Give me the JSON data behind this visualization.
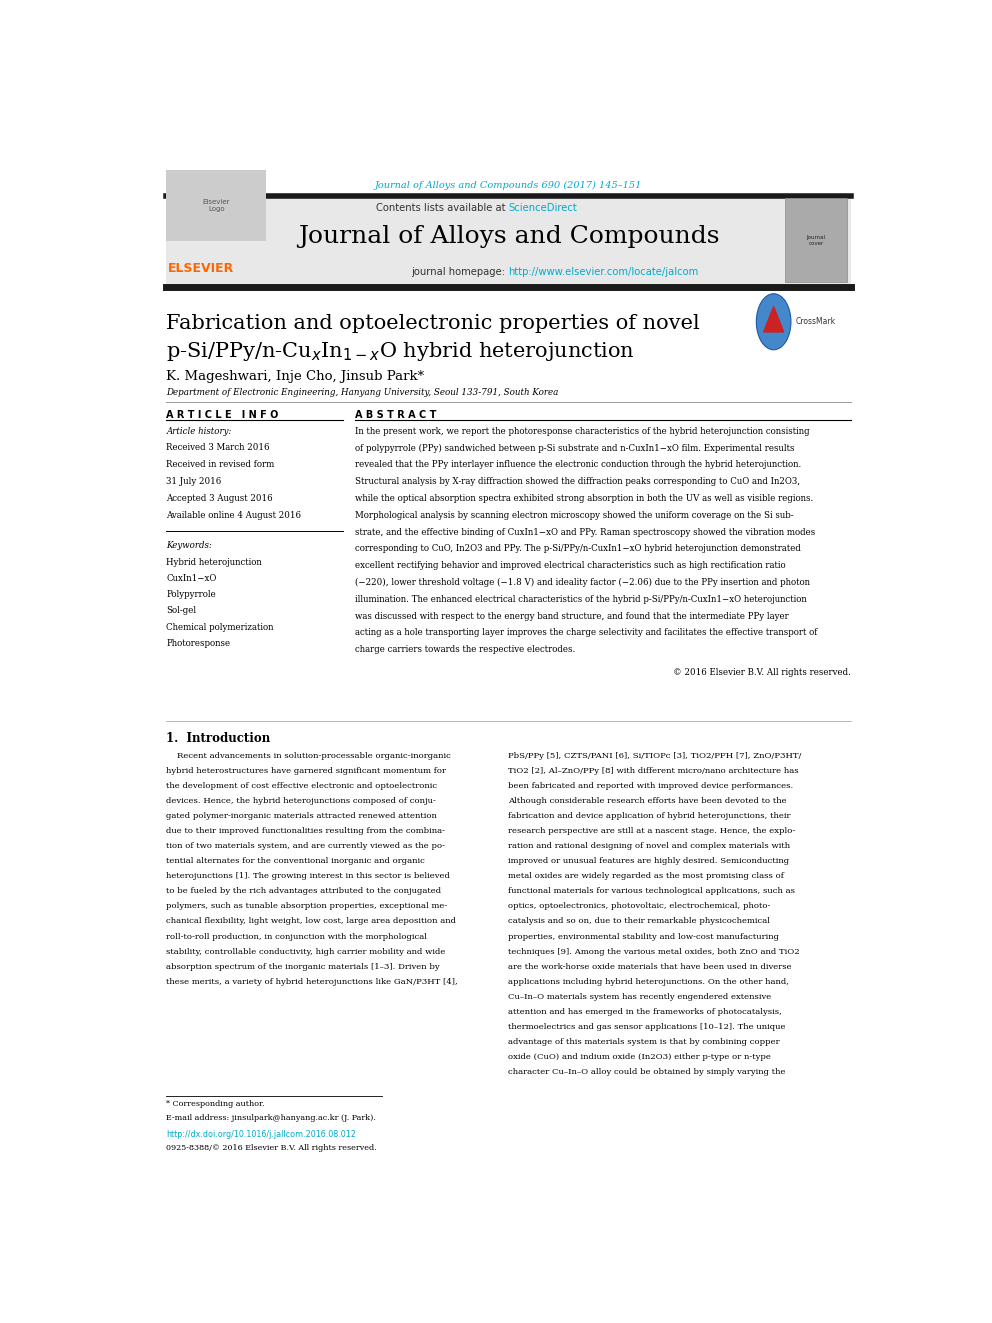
{
  "page_width": 9.92,
  "page_height": 13.23,
  "bg_color": "#ffffff",
  "journal_ref_text": "Journal of Alloys and Compounds 690 (2017) 145–151",
  "journal_ref_color": "#00aacc",
  "header_bg": "#e8e8e8",
  "header_title": "Journal of Alloys and Compounds",
  "contents_text": "Contents lists available at ",
  "sciencedirect_text": "ScienceDirect",
  "sciencedirect_color": "#00aacc",
  "homepage_label": "journal homepage: ",
  "homepage_url": "http://www.elsevier.com/locate/jalcom",
  "homepage_url_color": "#00aacc",
  "elsevier_color": "#FF6600",
  "elsevier_text": "ELSEVIER",
  "black_bar_color": "#1a1a1a",
  "article_title_line1": "Fabrication and optoelectronic properties of novel",
  "article_title_line2": "p-Si/PPy/n-Cu$_x$In$_{1-x}$O hybrid heterojunction",
  "authors": "K. Mageshwari, Inje Cho, Jinsub Park*",
  "affiliation": "Department of Electronic Engineering, Hanyang University, Seoul 133-791, South Korea",
  "article_info_header": "A R T I C L E   I N F O",
  "abstract_header": "A B S T R A C T",
  "article_history_label": "Article history:",
  "history_items": [
    "Received 3 March 2016",
    "Received in revised form",
    "31 July 2016",
    "Accepted 3 August 2016",
    "Available online 4 August 2016"
  ],
  "keywords_label": "Keywords:",
  "keywords": [
    "Hybrid heterojunction",
    "CuxIn1−xO",
    "Polypyrrole",
    "Sol-gel",
    "Chemical polymerization",
    "Photoresponse"
  ],
  "abstract_lines": [
    "In the present work, we report the photoresponse characteristics of the hybrid heterojunction consisting",
    "of polypyrrole (PPy) sandwiched between p-Si substrate and n-CuxIn1−xO film. Experimental results",
    "revealed that the PPy interlayer influence the electronic conduction through the hybrid heterojunction.",
    "Structural analysis by X-ray diffraction showed the diffraction peaks corresponding to CuO and In2O3,",
    "while the optical absorption spectra exhibited strong absorption in both the UV as well as visible regions.",
    "Morphological analysis by scanning electron microscopy showed the uniform coverage on the Si sub-",
    "strate, and the effective binding of CuxIn1−xO and PPy. Raman spectroscopy showed the vibration modes",
    "corresponding to CuO, In2O3 and PPy. The p-Si/PPy/n-CuxIn1−xO hybrid heterojunction demonstrated",
    "excellent rectifying behavior and improved electrical characteristics such as high rectification ratio",
    "(−220), lower threshold voltage (−1.8 V) and ideality factor (−2.06) due to the PPy insertion and photon",
    "illumination. The enhanced electrical characteristics of the hybrid p-Si/PPy/n-CuxIn1−xO heterojunction",
    "was discussed with respect to the energy band structure, and found that the intermediate PPy layer",
    "acting as a hole transporting layer improves the charge selectivity and facilitates the effective transport of",
    "charge carriers towards the respective electrodes."
  ],
  "copyright_text": "© 2016 Elsevier B.V. All rights reserved.",
  "section1_title": "1.  Introduction",
  "col1_lines": [
    "    Recent advancements in solution-processable organic-inorganic",
    "hybrid heterostructures have garnered significant momentum for",
    "the development of cost effective electronic and optoelectronic",
    "devices. Hence, the hybrid heterojunctions composed of conju-",
    "gated polymer-inorganic materials attracted renewed attention",
    "due to their improved functionalities resulting from the combina-",
    "tion of two materials system, and are currently viewed as the po-",
    "tential alternates for the conventional inorganic and organic",
    "heterojunctions [1]. The growing interest in this sector is believed",
    "to be fueled by the rich advantages attributed to the conjugated",
    "polymers, such as tunable absorption properties, exceptional me-",
    "chanical flexibility, light weight, low cost, large area deposition and",
    "roll-to-roll production, in conjunction with the morphological",
    "stability, controllable conductivity, high carrier mobility and wide",
    "absorption spectrum of the inorganic materials [1–3]. Driven by",
    "these merits, a variety of hybrid heterojunctions like GaN/P3HT [4],"
  ],
  "col2_lines": [
    "PbS/PPy [5], CZTS/PANI [6], Si/TIOPc [3], TiO2/PFH [7], ZnO/P3HT/",
    "TiO2 [2], Al–ZnO/PPy [8] with different micro/nano architecture has",
    "been fabricated and reported with improved device performances.",
    "Although considerable research efforts have been devoted to the",
    "fabrication and device application of hybrid heterojunctions, their",
    "research perspective are still at a nascent stage. Hence, the explo-",
    "ration and rational designing of novel and complex materials with",
    "improved or unusual features are highly desired. Semiconducting",
    "metal oxides are widely regarded as the most promising class of",
    "functional materials for various technological applications, such as",
    "optics, optoelectronics, photovoltaic, electrochemical, photo-",
    "catalysis and so on, due to their remarkable physicochemical",
    "properties, environmental stability and low-cost manufacturing",
    "techniques [9]. Among the various metal oxides, both ZnO and TiO2",
    "are the work-horse oxide materials that have been used in diverse",
    "applications including hybrid heterojunctions. On the other hand,",
    "Cu–In–O materials system has recently engendered extensive",
    "attention and has emerged in the frameworks of photocatalysis,",
    "thermoelectrics and gas sensor applications [10–12]. The unique",
    "advantage of this materials system is that by combining copper",
    "oxide (CuO) and indium oxide (In2O3) either p-type or n-type",
    "character Cu–In–O alloy could be obtained by simply varying the"
  ],
  "footer_star": "* Corresponding author.",
  "footer_email": "E-mail address: jinsulpark@hanyang.ac.kr (J. Park).",
  "footer_doi": "http://dx.doi.org/10.1016/j.jallcom.2016.08.012",
  "footer_doi_color": "#00aacc",
  "footer_issn": "0925-8388/© 2016 Elsevier B.V. All rights reserved."
}
